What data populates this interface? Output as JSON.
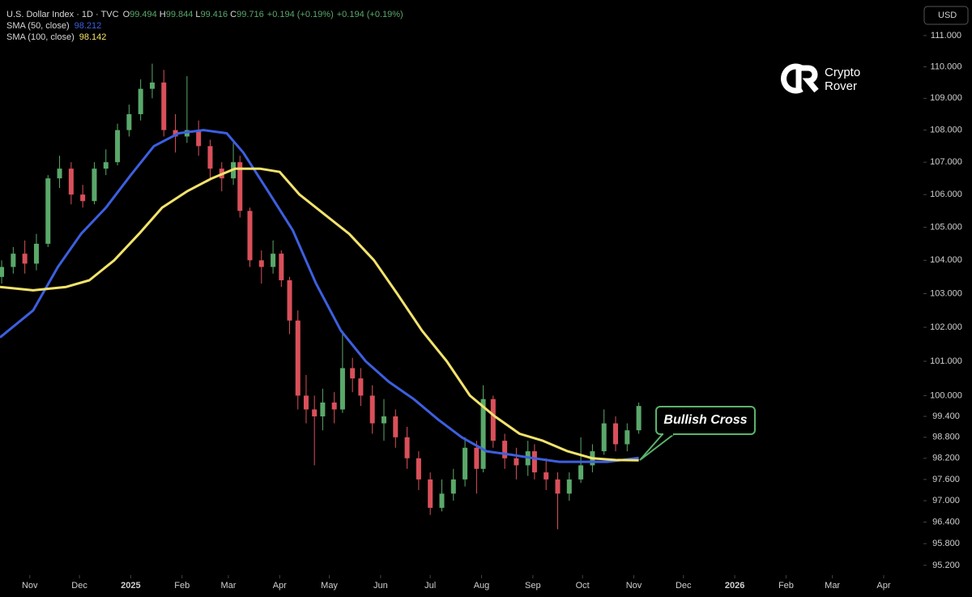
{
  "chart_data": {
    "type": "candlestick",
    "title": "U.S. Dollar Index · 1D · TVC",
    "ohlc_labels": [
      "O",
      "H",
      "L",
      "C"
    ],
    "ohlc": [
      99.494,
      99.844,
      99.416,
      99.716
    ],
    "change": [
      "+0.194 (+0.19%)",
      "+0.194 (+0.19%)"
    ],
    "currency": "USD",
    "log": true,
    "up_color": "#5aa86a",
    "down_color": "#d9505a",
    "ylim": [
      94.93,
      112.15
    ],
    "yticks": [
      {
        "value": 111,
        "label": "111.000"
      },
      {
        "value": 110,
        "label": "110.000"
      },
      {
        "value": 109,
        "label": "109.000"
      },
      {
        "value": 108,
        "label": "108.000"
      },
      {
        "value": 107,
        "label": "107.000"
      },
      {
        "value": 106,
        "label": "106.000"
      },
      {
        "value": 105,
        "label": "105.000"
      },
      {
        "value": 104,
        "label": "104.000"
      },
      {
        "value": 103,
        "label": "103.000"
      },
      {
        "value": 102,
        "label": "102.000"
      },
      {
        "value": 101,
        "label": "101.000"
      },
      {
        "value": 100,
        "label": "100.000"
      },
      {
        "value": 99.4,
        "label": "99.400"
      },
      {
        "value": 98.8,
        "label": "98.800"
      },
      {
        "value": 98.2,
        "label": "98.200"
      },
      {
        "value": 97.6,
        "label": "97.600"
      },
      {
        "value": 97,
        "label": "97.000"
      },
      {
        "value": 96.4,
        "label": "96.400"
      },
      {
        "value": 95.8,
        "label": "95.800"
      },
      {
        "value": 95.2,
        "label": "95.200"
      }
    ],
    "xlim": [
      -18,
      540
    ],
    "xticks": [
      {
        "value": 0,
        "label": "Nov"
      },
      {
        "value": 30,
        "label": "Dec"
      },
      {
        "value": 61,
        "label": "2025"
      },
      {
        "value": 92,
        "label": "Feb"
      },
      {
        "value": 120,
        "label": "Mar"
      },
      {
        "value": 151,
        "label": "Apr"
      },
      {
        "value": 181,
        "label": "May"
      },
      {
        "value": 212,
        "label": "Jun"
      },
      {
        "value": 242,
        "label": "Jul"
      },
      {
        "value": 273,
        "label": "Aug"
      },
      {
        "value": 304,
        "label": "Sep"
      },
      {
        "value": 334,
        "label": "Oct"
      },
      {
        "value": 365,
        "label": "Nov"
      },
      {
        "value": 395,
        "label": "Dec"
      },
      {
        "value": 426,
        "label": "2026"
      },
      {
        "value": 457,
        "label": "Feb"
      },
      {
        "value": 485,
        "label": "Mar"
      },
      {
        "value": 516,
        "label": "Apr"
      }
    ],
    "candles": {
      "x": [
        -17,
        -10,
        -3,
        4,
        11,
        18,
        25,
        32,
        39,
        46,
        53,
        60,
        67,
        74,
        81,
        88,
        95,
        102,
        109,
        116,
        123,
        127,
        133,
        140,
        147,
        152,
        157,
        162,
        167,
        172,
        177,
        184,
        189,
        195,
        200,
        207,
        214,
        221,
        228,
        235,
        242,
        249,
        256,
        263,
        270,
        274,
        280,
        287,
        294,
        301,
        305,
        312,
        319,
        326,
        333,
        340,
        347,
        354,
        361,
        368
      ],
      "open": [
        103.5,
        103.8,
        104.2,
        103.9,
        104.5,
        106.5,
        106.8,
        106.0,
        105.8,
        106.8,
        107.0,
        108.0,
        108.5,
        109.3,
        109.5,
        108.0,
        107.8,
        108.0,
        107.5,
        106.8,
        106.5,
        107.0,
        105.5,
        104.0,
        103.8,
        104.2,
        103.4,
        102.2,
        100.0,
        99.6,
        99.4,
        99.8,
        99.6,
        100.8,
        100.5,
        100.0,
        99.2,
        99.4,
        98.8,
        98.2,
        97.6,
        96.8,
        97.2,
        97.6,
        98.5,
        97.9,
        99.9,
        98.7,
        98.2,
        98.0,
        98.4,
        97.8,
        97.6,
        97.2,
        97.6,
        98.0,
        98.4,
        99.2,
        98.6,
        99.0
      ],
      "high": [
        104.0,
        104.4,
        104.6,
        104.8,
        106.6,
        107.2,
        107.0,
        106.3,
        107.0,
        107.4,
        108.2,
        108.8,
        109.6,
        110.1,
        109.9,
        108.5,
        109.7,
        108.3,
        107.7,
        107.0,
        107.6,
        107.2,
        105.6,
        104.3,
        104.6,
        104.3,
        103.5,
        102.5,
        100.6,
        100.0,
        100.2,
        100.1,
        101.9,
        101.1,
        100.8,
        100.3,
        99.9,
        99.6,
        99.1,
        98.4,
        97.8,
        97.6,
        97.9,
        98.8,
        98.7,
        100.3,
        100.0,
        98.9,
        98.5,
        98.7,
        98.6,
        98.2,
        97.8,
        97.8,
        98.8,
        98.6,
        99.6,
        99.4,
        99.2,
        99.8
      ],
      "low": [
        103.3,
        103.6,
        103.6,
        103.7,
        104.4,
        106.2,
        105.7,
        105.6,
        105.7,
        106.6,
        106.9,
        107.8,
        108.3,
        109.0,
        107.8,
        107.3,
        107.6,
        107.2,
        106.5,
        106.1,
        106.3,
        105.3,
        103.8,
        103.3,
        103.6,
        103.2,
        101.8,
        99.6,
        99.2,
        98.0,
        99.0,
        99.2,
        99.5,
        100.1,
        99.7,
        98.9,
        98.7,
        98.5,
        97.9,
        97.3,
        96.6,
        96.7,
        97.0,
        97.4,
        97.2,
        97.8,
        98.5,
        97.9,
        97.6,
        97.7,
        97.6,
        97.3,
        96.2,
        97.0,
        97.5,
        97.8,
        98.3,
        98.4,
        98.4,
        98.9
      ],
      "close": [
        103.8,
        104.2,
        103.9,
        104.5,
        106.5,
        106.8,
        106.0,
        105.8,
        106.8,
        107.0,
        108.0,
        108.5,
        109.3,
        109.5,
        108.0,
        107.8,
        108.0,
        107.5,
        106.8,
        106.5,
        107.0,
        105.5,
        104.0,
        103.8,
        104.2,
        103.4,
        102.2,
        100.0,
        99.6,
        99.4,
        99.8,
        99.6,
        100.8,
        100.5,
        100.0,
        99.2,
        99.4,
        98.8,
        98.2,
        97.6,
        96.8,
        97.2,
        97.6,
        98.5,
        97.9,
        99.9,
        98.7,
        98.2,
        98.0,
        98.4,
        97.8,
        97.6,
        97.2,
        97.6,
        98.0,
        98.4,
        99.2,
        98.6,
        99.0,
        99.7
      ]
    },
    "series": [
      {
        "name": "SMA (50, close)",
        "color": "#3d5fe0",
        "last": 98.212,
        "x": [
          -18,
          2,
          17,
          31,
          46,
          61,
          75,
          90,
          105,
          119,
          129,
          144,
          159,
          173,
          188,
          203,
          217,
          232,
          247,
          261,
          276,
          291,
          305,
          320,
          335,
          349,
          368
        ],
        "values": [
          101.7,
          102.5,
          103.8,
          104.8,
          105.6,
          106.6,
          107.5,
          107.9,
          108.0,
          107.9,
          107.3,
          106.1,
          104.9,
          103.3,
          101.9,
          101.0,
          100.4,
          99.9,
          99.3,
          98.8,
          98.4,
          98.3,
          98.2,
          98.1,
          98.1,
          98.1,
          98.21
        ]
      },
      {
        "name": "SMA (100, close)",
        "color": "#f2e36b",
        "last": 98.142,
        "x": [
          -18,
          2,
          22,
          36,
          51,
          66,
          80,
          95,
          110,
          124,
          139,
          151,
          163,
          178,
          193,
          208,
          222,
          237,
          252,
          266,
          281,
          296,
          310,
          325,
          340,
          354,
          368
        ],
        "values": [
          103.2,
          103.1,
          103.2,
          103.4,
          104.0,
          104.8,
          105.6,
          106.1,
          106.5,
          106.8,
          106.8,
          106.7,
          106.0,
          105.4,
          104.8,
          104.0,
          103.0,
          101.9,
          101.0,
          100.0,
          99.4,
          98.9,
          98.7,
          98.4,
          98.2,
          98.15,
          98.142
        ]
      }
    ],
    "annotation": "Bullish Cross"
  },
  "logo": {
    "lines": [
      "Crypto",
      "Rover"
    ]
  }
}
